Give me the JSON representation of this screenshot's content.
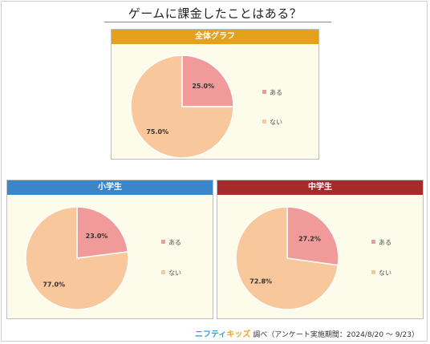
{
  "title": "ゲームに課金したことはある？",
  "colors": {
    "aru": "#f19a9a",
    "nai": "#f8c79b",
    "panel_bg": "#fdfbea"
  },
  "chart_data": [
    {
      "type": "pie",
      "title": "全体グラフ",
      "header_color": "#e6a11c",
      "categories": [
        "ある",
        "ない"
      ],
      "values": [
        25.0,
        75.0
      ],
      "labels": [
        "25.0%",
        "75.0%"
      ],
      "legend": "right"
    },
    {
      "type": "pie",
      "title": "小学生",
      "header_color": "#3a86c8",
      "categories": [
        "ある",
        "ない"
      ],
      "values": [
        23.0,
        77.0
      ],
      "labels": [
        "23.0%",
        "77.0%"
      ],
      "legend": "right"
    },
    {
      "type": "pie",
      "title": "中学生",
      "header_color": "#a52a2a",
      "categories": [
        "ある",
        "ない"
      ],
      "values": [
        27.2,
        72.8
      ],
      "labels": [
        "27.2%",
        "72.8%"
      ],
      "legend": "right"
    }
  ],
  "footer": {
    "logo_part1": "ニフティ",
    "logo_part2": "キッズ",
    "text": "調べ（アンケート実施期間：2024/8/20 ～ 9/23）"
  }
}
